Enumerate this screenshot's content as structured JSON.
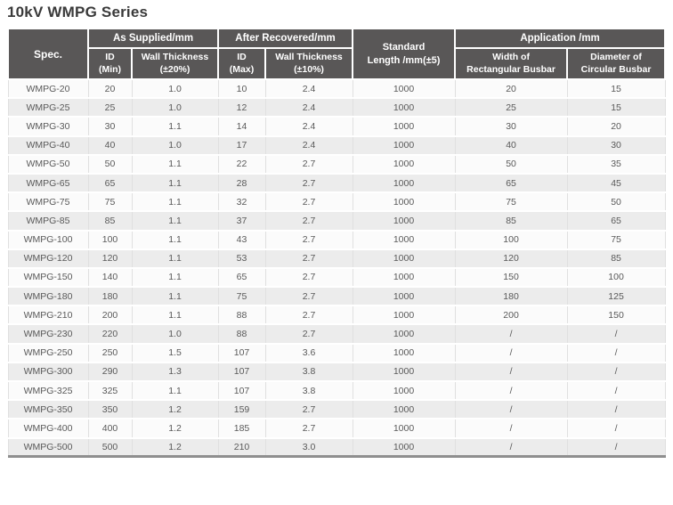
{
  "page": {
    "title": "10kV WMPG Series"
  },
  "colors": {
    "header_bg": "#595757",
    "header_text": "#ffffff",
    "title_text": "#3a3a3a",
    "row_odd_bg": "#fbfbfb",
    "row_even_bg": "#ececec",
    "body_text": "#595959",
    "table_bottom_border": "#8f8f8f",
    "cell_divider": "#e0e0e0"
  },
  "table": {
    "header": {
      "spec": "Spec.",
      "as_supplied": "As Supplied/mm",
      "after_recovered": "After Recovered/mm",
      "standard_length_line1": "Standard",
      "standard_length_line2": "Length /mm(±5)",
      "application": "Application /mm",
      "id_min_line1": "ID",
      "id_min_line2": "(Min)",
      "wt20_line1": "Wall Thickness",
      "wt20_line2": "(±20%)",
      "id_max_line1": "ID",
      "id_max_line2": "(Max)",
      "wt10_line1": "Wall Thickness",
      "wt10_line2": "(±10%)",
      "width_line1": "Width of",
      "width_line2": "Rectangular Busbar",
      "diameter_line1": "Diameter of",
      "diameter_line2": "Circular Busbar"
    },
    "rows": [
      [
        "WMPG-20",
        "20",
        "1.0",
        "10",
        "2.4",
        "1000",
        "20",
        "15"
      ],
      [
        "WMPG-25",
        "25",
        "1.0",
        "12",
        "2.4",
        "1000",
        "25",
        "15"
      ],
      [
        "WMPG-30",
        "30",
        "1.1",
        "14",
        "2.4",
        "1000",
        "30",
        "20"
      ],
      [
        "WMPG-40",
        "40",
        "1.0",
        "17",
        "2.4",
        "1000",
        "40",
        "30"
      ],
      [
        "WMPG-50",
        "50",
        "1.1",
        "22",
        "2.7",
        "1000",
        "50",
        "35"
      ],
      [
        "WMPG-65",
        "65",
        "1.1",
        "28",
        "2.7",
        "1000",
        "65",
        "45"
      ],
      [
        "WMPG-75",
        "75",
        "1.1",
        "32",
        "2.7",
        "1000",
        "75",
        "50"
      ],
      [
        "WMPG-85",
        "85",
        "1.1",
        "37",
        "2.7",
        "1000",
        "85",
        "65"
      ],
      [
        "WMPG-100",
        "100",
        "1.1",
        "43",
        "2.7",
        "1000",
        "100",
        "75"
      ],
      [
        "WMPG-120",
        "120",
        "1.1",
        "53",
        "2.7",
        "1000",
        "120",
        "85"
      ],
      [
        "WMPG-150",
        "140",
        "1.1",
        "65",
        "2.7",
        "1000",
        "150",
        "100"
      ],
      [
        "WMPG-180",
        "180",
        "1.1",
        "75",
        "2.7",
        "1000",
        "180",
        "125"
      ],
      [
        "WMPG-210",
        "200",
        "1.1",
        "88",
        "2.7",
        "1000",
        "200",
        "150"
      ],
      [
        "WMPG-230",
        "220",
        "1.0",
        "88",
        "2.7",
        "1000",
        "/",
        "/"
      ],
      [
        "WMPG-250",
        "250",
        "1.5",
        "107",
        "3.6",
        "1000",
        "/",
        "/"
      ],
      [
        "WMPG-300",
        "290",
        "1.3",
        "107",
        "3.8",
        "1000",
        "/",
        "/"
      ],
      [
        "WMPG-325",
        "325",
        "1.1",
        "107",
        "3.8",
        "1000",
        "/",
        "/"
      ],
      [
        "WMPG-350",
        "350",
        "1.2",
        "159",
        "2.7",
        "1000",
        "/",
        "/"
      ],
      [
        "WMPG-400",
        "400",
        "1.2",
        "185",
        "2.7",
        "1000",
        "/",
        "/"
      ],
      [
        "WMPG-500",
        "500",
        "1.2",
        "210",
        "3.0",
        "1000",
        "/",
        "/"
      ]
    ]
  }
}
